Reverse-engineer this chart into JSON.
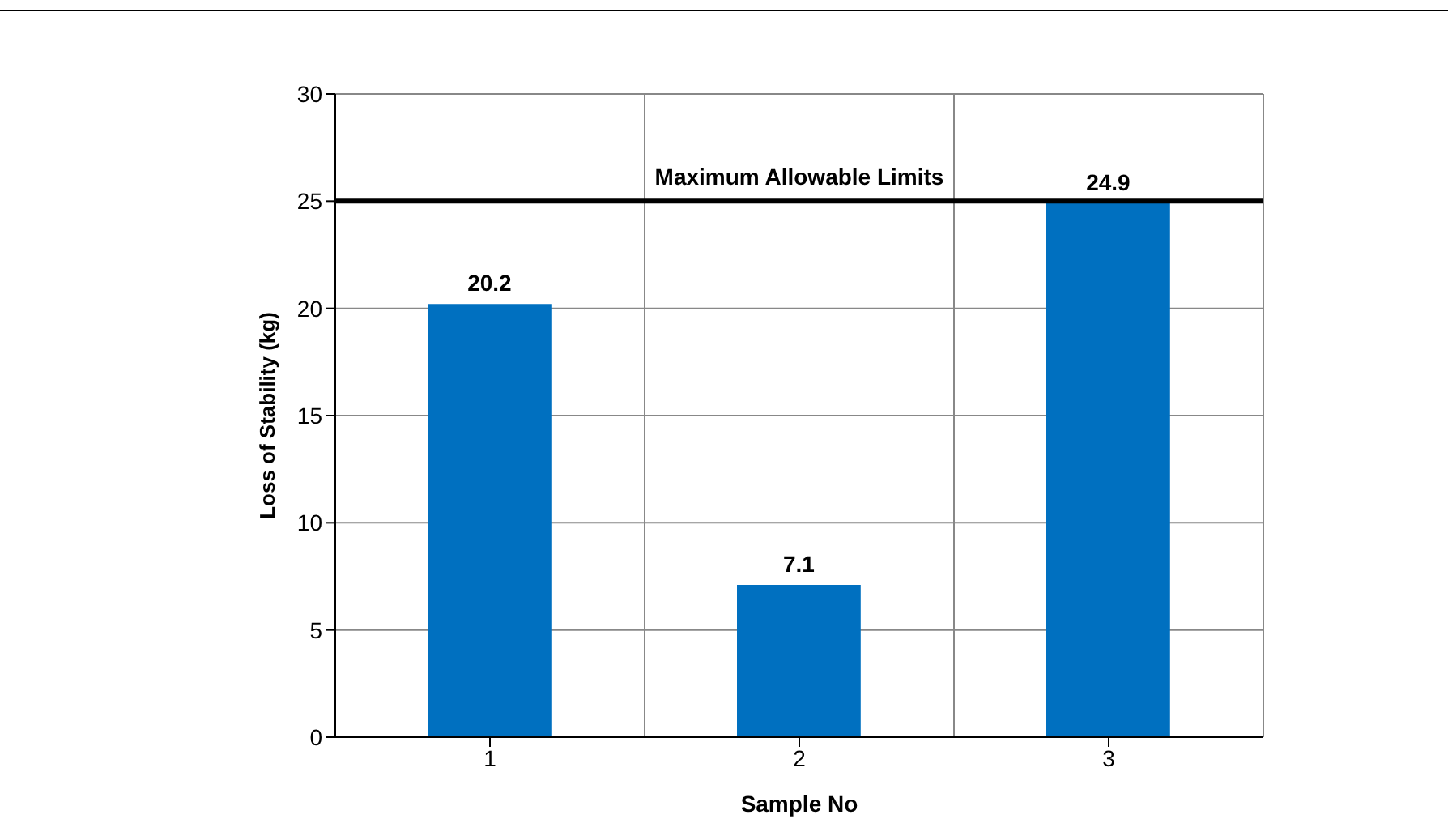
{
  "chart_data": {
    "type": "bar",
    "xlabel": "Sample No",
    "ylabel": "Loss of Stability (kg)",
    "categories": [
      "1",
      "2",
      "3"
    ],
    "series": [
      {
        "color": "#0070c0",
        "values": [
          20.2,
          7.1,
          24.9
        ]
      }
    ],
    "ylim": [
      0,
      30
    ],
    "yticks": [
      0,
      5,
      10,
      15,
      20,
      25,
      30
    ],
    "grid": true,
    "data_labels": true,
    "legend": false,
    "ref_lines": [
      {
        "axis": "y",
        "value": 25,
        "label": "Maximum Allowable Limits",
        "color": "#000000",
        "line_style": "solid"
      }
    ]
  }
}
